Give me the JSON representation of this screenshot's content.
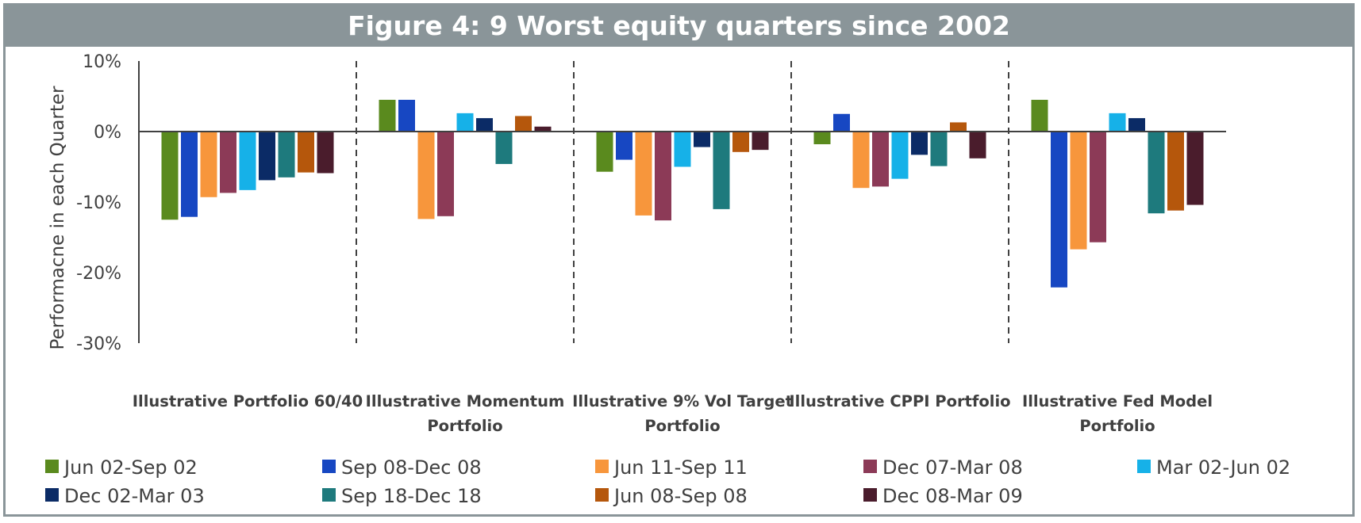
{
  "chart_data": {
    "type": "bar",
    "title": "Figure 4: 9 Worst equity quarters since 2002",
    "ylabel": "Performacne in each Quarter",
    "ylim": [
      -30,
      10
    ],
    "yticks": [
      10,
      0,
      -10,
      -20,
      -30
    ],
    "ytick_labels": [
      "10%",
      "0%",
      "-10%",
      "-20%",
      "-30%"
    ],
    "categories": [
      [
        "Illustrative Portfolio 60/40"
      ],
      [
        "Illustrative Momentum",
        "Portfolio"
      ],
      [
        "Illustrative 9% Vol Target",
        "Portfolio"
      ],
      [
        "Illustrative CPPI Portfolio"
      ],
      [
        "Illustrative Fed Model",
        "Portfolio"
      ]
    ],
    "legend_position": "bottom",
    "series": [
      {
        "name": "Jun 02-Sep 02",
        "color": "#5a8a1e",
        "values": [
          -12.5,
          4.5,
          -5.7,
          -1.8,
          4.5
        ]
      },
      {
        "name": "Sep 08-Dec 08",
        "color": "#1747c2",
        "values": [
          -12.1,
          4.5,
          -4.0,
          2.5,
          -22.1
        ]
      },
      {
        "name": "Jun 11-Sep 11",
        "color": "#f7963c",
        "values": [
          -9.3,
          -12.4,
          -11.9,
          -8.0,
          -16.7
        ]
      },
      {
        "name": "Dec 07-Mar 08",
        "color": "#8c3a57",
        "values": [
          -8.7,
          -12.0,
          -12.6,
          -7.8,
          -15.7
        ]
      },
      {
        "name": "Mar 02-Jun 02",
        "color": "#16b1e8",
        "values": [
          -8.3,
          2.6,
          -5.0,
          -6.7,
          2.6
        ]
      },
      {
        "name": "Dec 02-Mar 03",
        "color": "#0b2b66",
        "values": [
          -6.9,
          1.9,
          -2.2,
          -3.3,
          1.9
        ]
      },
      {
        "name": "Sep 18-Dec 18",
        "color": "#1e7a7d",
        "values": [
          -6.5,
          -4.6,
          -11.0,
          -4.9,
          -11.6
        ]
      },
      {
        "name": "Jun 08-Sep 08",
        "color": "#b5570c",
        "values": [
          -5.8,
          2.2,
          -2.9,
          1.3,
          -11.2
        ]
      },
      {
        "name": "Dec 08-Mar 09",
        "color": "#4a1c2c",
        "values": [
          -5.9,
          0.7,
          -2.6,
          -3.8,
          -10.4
        ]
      }
    ]
  }
}
